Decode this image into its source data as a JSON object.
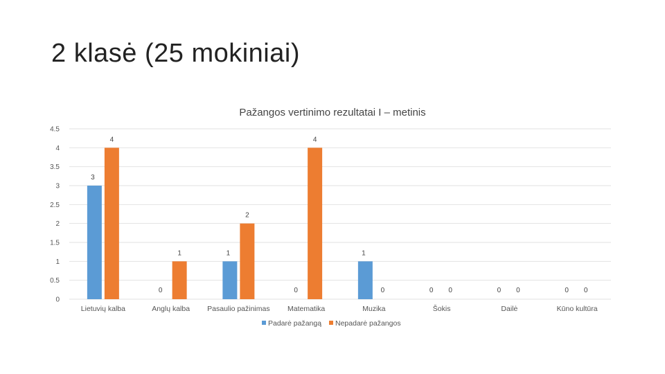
{
  "slide": {
    "title": "2 klasė  (25 mokiniai)"
  },
  "chart_data": {
    "type": "bar",
    "title": "Pažangos vertinimo rezultatai I – metinis",
    "categories": [
      "Lietuvių kalba",
      "Anglų kalba",
      "Pasaulio pažinimas",
      "Matematika",
      "Muzika",
      "Šokis",
      "Dailė",
      "Kūno kultūra"
    ],
    "series": [
      {
        "name": "Padarė pažangą",
        "color": "#5B9BD5",
        "values": [
          3,
          0,
          1,
          0,
          1,
          0,
          0,
          0
        ]
      },
      {
        "name": "Nepadarė pažangos",
        "color": "#ED7D31",
        "values": [
          4,
          1,
          2,
          4,
          0,
          0,
          0,
          0
        ]
      }
    ],
    "ylim": [
      0,
      4.5
    ],
    "yticks": [
      "0",
      "0.5",
      "1",
      "1.5",
      "2",
      "2.5",
      "3",
      "3.5",
      "4",
      "4.5"
    ],
    "grid": true,
    "legend_position": "bottom",
    "data_labels": true
  }
}
